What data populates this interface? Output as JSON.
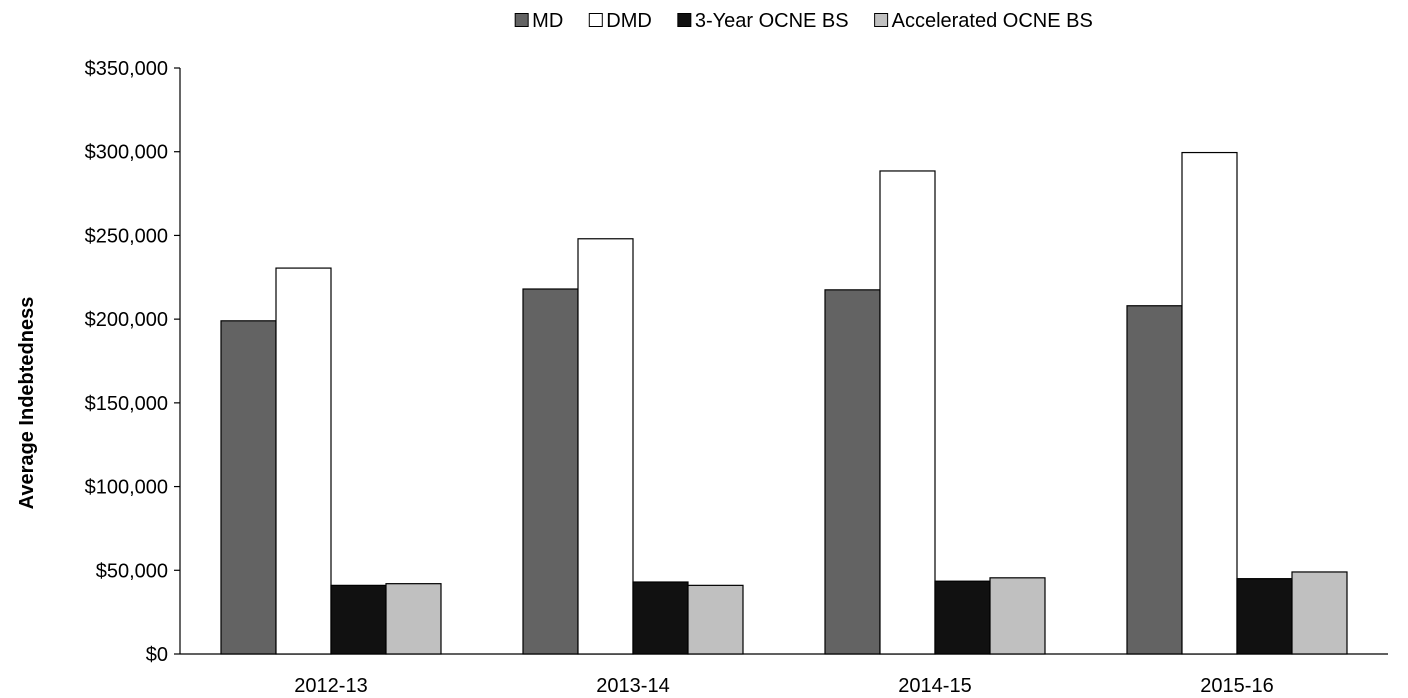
{
  "chart_data": {
    "type": "bar",
    "title": "",
    "xlabel": "",
    "ylabel": "Average Indebtedness",
    "ylim": [
      0,
      350000
    ],
    "yticks": [
      0,
      50000,
      100000,
      150000,
      200000,
      250000,
      300000,
      350000
    ],
    "ytick_labels": [
      "$0",
      "$50,000",
      "$100,000",
      "$150,000",
      "$200,000",
      "$250,000",
      "$300,000",
      "$350,000"
    ],
    "categories": [
      "2012-13",
      "2013-14",
      "2014-15",
      "2015-16"
    ],
    "series": [
      {
        "name": "MD",
        "color": "#636363",
        "values": [
          199000,
          218000,
          217500,
          208000
        ]
      },
      {
        "name": "DMD",
        "color": "#ffffff",
        "values": [
          230500,
          248000,
          288500,
          299500
        ]
      },
      {
        "name": "3-Year OCNE BS",
        "color": "#111111",
        "values": [
          41000,
          43000,
          43500,
          45000
        ]
      },
      {
        "name": "Accelerated OCNE BS",
        "color": "#c0c0c0",
        "values": [
          42000,
          41000,
          45500,
          49000
        ]
      }
    ],
    "legend_position": "top-center",
    "grid": false
  }
}
